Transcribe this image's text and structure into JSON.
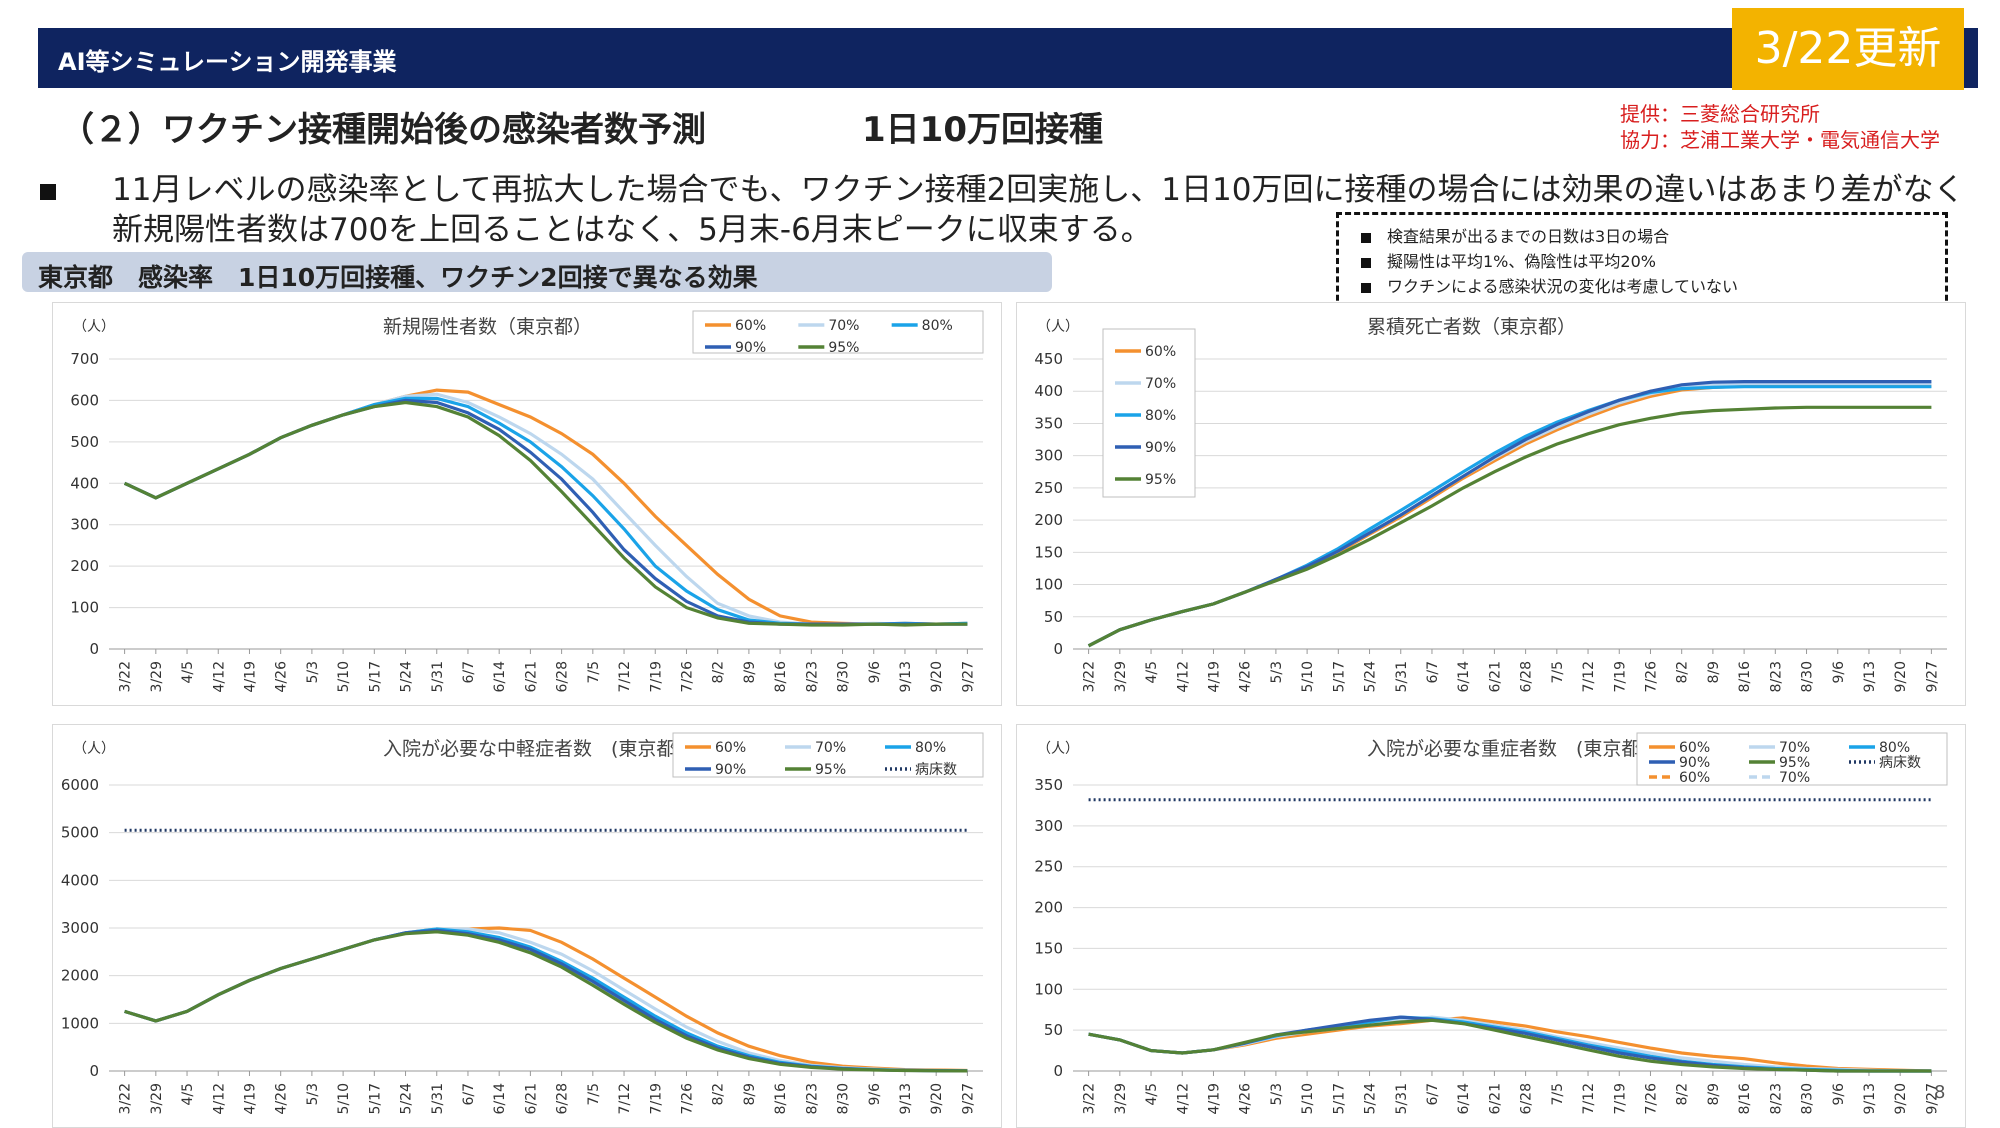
{
  "header": {
    "program": "AI等シミュレーション開発事業",
    "update_badge": "3/22更新",
    "title": "（２）ワクチン接種開始後の感染者数予測",
    "title_scenario": "1日10万回接種",
    "credit_provider": "提供：三菱総合研究所",
    "credit_collab": "協力：芝浦工業大学・電気通信大学",
    "brand_color": "#0f2460",
    "badge_color": "#f3b300",
    "credit_color": "#d81e1e"
  },
  "summary": "11月レベルの感染率として再拡大した場合でも、ワクチン接種2回実施し、1日10万回に接種の場合には効果の違いはあまり差がなく新規陽性者数は700を上回ることはなく、5月末-6月末ピークに収束する。",
  "subtitle": "東京都　感染率　1日10万回接種、ワクチン2回接で異なる効果",
  "notes": [
    "検査結果が出るまでの日数は3日の場合",
    "擬陽性は平均1%、偽陰性は平均20%",
    "ワクチンによる感染状況の変化は考慮していない"
  ],
  "page_number": "8",
  "series_colors": {
    "60%": "#f4902f",
    "70%": "#bdd7ee",
    "80%": "#1aa3e8",
    "90%": "#2f5fb3",
    "95%": "#548235",
    "病床数": "#203864"
  },
  "chart_data": [
    {
      "type": "line",
      "title": "新規陽性者数（東京都）",
      "ylabel": "（人）",
      "ylim": [
        0,
        700
      ],
      "yticks": [
        0,
        100,
        200,
        300,
        400,
        500,
        600,
        700
      ],
      "x": [
        "3/22",
        "3/29",
        "4/5",
        "4/12",
        "4/19",
        "4/26",
        "5/3",
        "5/10",
        "5/17",
        "5/24",
        "5/31",
        "6/7",
        "6/14",
        "6/21",
        "6/28",
        "7/5",
        "7/12",
        "7/19",
        "7/26",
        "8/2",
        "8/9",
        "8/16",
        "8/23",
        "8/30",
        "9/6",
        "9/13",
        "9/20",
        "9/27"
      ],
      "legend_position": "top-right",
      "series": [
        {
          "name": "60%",
          "values": [
            400,
            365,
            400,
            435,
            470,
            510,
            540,
            565,
            590,
            610,
            625,
            620,
            590,
            560,
            520,
            470,
            400,
            320,
            250,
            180,
            120,
            80,
            65,
            62,
            60,
            62,
            60,
            62
          ]
        },
        {
          "name": "70%",
          "values": [
            400,
            365,
            400,
            435,
            470,
            510,
            540,
            565,
            590,
            610,
            615,
            595,
            560,
            520,
            470,
            410,
            330,
            250,
            175,
            110,
            80,
            65,
            60,
            60,
            62,
            60,
            60,
            62
          ]
        },
        {
          "name": "80%",
          "values": [
            400,
            365,
            400,
            435,
            470,
            510,
            540,
            565,
            590,
            605,
            605,
            585,
            545,
            500,
            440,
            370,
            290,
            200,
            140,
            95,
            70,
            62,
            60,
            60,
            60,
            62,
            60,
            62
          ]
        },
        {
          "name": "90%",
          "values": [
            400,
            365,
            400,
            435,
            470,
            510,
            540,
            565,
            585,
            600,
            595,
            570,
            530,
            475,
            410,
            330,
            240,
            170,
            115,
            80,
            65,
            60,
            60,
            60,
            60,
            60,
            60,
            60
          ]
        },
        {
          "name": "95%",
          "values": [
            400,
            365,
            400,
            435,
            470,
            510,
            540,
            565,
            585,
            595,
            585,
            560,
            515,
            455,
            380,
            300,
            220,
            150,
            100,
            75,
            62,
            60,
            58,
            58,
            60,
            58,
            60,
            60
          ]
        }
      ]
    },
    {
      "type": "line",
      "title": "累積死亡者数（東京都）",
      "ylabel": "（人）",
      "ylim": [
        0,
        450
      ],
      "yticks": [
        0,
        50,
        100,
        150,
        200,
        250,
        300,
        350,
        400,
        450
      ],
      "x": [
        "3/22",
        "3/29",
        "4/5",
        "4/12",
        "4/19",
        "4/26",
        "5/3",
        "5/10",
        "5/17",
        "5/24",
        "5/31",
        "6/7",
        "6/14",
        "6/21",
        "6/28",
        "7/5",
        "7/12",
        "7/19",
        "7/26",
        "8/2",
        "8/9",
        "8/16",
        "8/23",
        "8/30",
        "9/6",
        "9/13",
        "9/20",
        "9/27"
      ],
      "legend_position": "top-left",
      "series": [
        {
          "name": "60%",
          "values": [
            5,
            30,
            45,
            58,
            70,
            88,
            108,
            128,
            150,
            178,
            205,
            235,
            265,
            292,
            318,
            340,
            360,
            378,
            392,
            402,
            406,
            408,
            408,
            408,
            408,
            408,
            408,
            408
          ]
        },
        {
          "name": "70%",
          "values": [
            5,
            30,
            45,
            58,
            70,
            88,
            108,
            128,
            152,
            180,
            208,
            238,
            268,
            296,
            322,
            344,
            364,
            382,
            396,
            406,
            410,
            412,
            412,
            412,
            412,
            412,
            412,
            412
          ]
        },
        {
          "name": "80%",
          "values": [
            5,
            30,
            45,
            58,
            70,
            88,
            108,
            130,
            156,
            186,
            215,
            245,
            275,
            304,
            330,
            352,
            370,
            386,
            398,
            404,
            406,
            407,
            407,
            407,
            407,
            407,
            407,
            407
          ]
        },
        {
          "name": "90%",
          "values": [
            5,
            30,
            45,
            58,
            70,
            88,
            108,
            128,
            152,
            180,
            208,
            238,
            268,
            298,
            325,
            348,
            368,
            386,
            400,
            410,
            414,
            415,
            415,
            415,
            415,
            415,
            415,
            415
          ]
        },
        {
          "name": "95%",
          "values": [
            5,
            30,
            45,
            58,
            70,
            88,
            106,
            124,
            146,
            170,
            196,
            222,
            250,
            275,
            298,
            318,
            334,
            348,
            358,
            366,
            370,
            372,
            374,
            375,
            375,
            375,
            375,
            375
          ]
        }
      ]
    },
    {
      "type": "line",
      "title": "入院が必要な中軽症者数　(東京都)",
      "ylabel": "（人）",
      "ylim": [
        0,
        6000
      ],
      "yticks": [
        0,
        1000,
        2000,
        3000,
        4000,
        5000,
        6000
      ],
      "x": [
        "3/22",
        "3/29",
        "4/5",
        "4/12",
        "4/19",
        "4/26",
        "5/3",
        "5/10",
        "5/17",
        "5/24",
        "5/31",
        "6/7",
        "6/14",
        "6/21",
        "6/28",
        "7/5",
        "7/12",
        "7/19",
        "7/26",
        "8/2",
        "8/9",
        "8/16",
        "8/23",
        "8/30",
        "9/6",
        "9/13",
        "9/20",
        "9/27"
      ],
      "legend_position": "top-right",
      "series": [
        {
          "name": "60%",
          "values": [
            1250,
            1050,
            1250,
            1600,
            1900,
            2150,
            2350,
            2550,
            2750,
            2900,
            2980,
            2980,
            3000,
            2950,
            2700,
            2350,
            1950,
            1550,
            1150,
            800,
            520,
            320,
            180,
            100,
            60,
            30,
            20,
            10
          ]
        },
        {
          "name": "70%",
          "values": [
            1250,
            1050,
            1250,
            1600,
            1900,
            2150,
            2350,
            2550,
            2750,
            2900,
            2980,
            2980,
            2900,
            2700,
            2450,
            2100,
            1700,
            1300,
            920,
            620,
            380,
            220,
            120,
            70,
            40,
            20,
            10,
            5
          ]
        },
        {
          "name": "80%",
          "values": [
            1250,
            1050,
            1250,
            1600,
            1900,
            2150,
            2350,
            2550,
            2750,
            2900,
            2980,
            2920,
            2800,
            2600,
            2300,
            1950,
            1550,
            1150,
            800,
            520,
            320,
            180,
            100,
            55,
            30,
            15,
            8,
            5
          ]
        },
        {
          "name": "90%",
          "values": [
            1250,
            1050,
            1250,
            1600,
            1900,
            2150,
            2350,
            2550,
            2750,
            2900,
            2950,
            2880,
            2750,
            2550,
            2250,
            1880,
            1480,
            1080,
            740,
            480,
            290,
            160,
            90,
            50,
            25,
            12,
            6,
            3
          ]
        },
        {
          "name": "95%",
          "values": [
            1250,
            1050,
            1250,
            1600,
            1900,
            2150,
            2350,
            2550,
            2750,
            2880,
            2920,
            2850,
            2700,
            2480,
            2180,
            1800,
            1400,
            1020,
            690,
            440,
            260,
            140,
            75,
            40,
            20,
            10,
            5,
            2
          ]
        },
        {
          "name": "病床数",
          "values": [
            5050,
            5050,
            5050,
            5050,
            5050,
            5050,
            5050,
            5050,
            5050,
            5050,
            5050,
            5050,
            5050,
            5050,
            5050,
            5050,
            5050,
            5050,
            5050,
            5050,
            5050,
            5050,
            5050,
            5050,
            5050,
            5050,
            5050,
            5050
          ]
        }
      ]
    },
    {
      "type": "line",
      "title": "入院が必要な重症者数　(東京都)",
      "ylabel": "（人）",
      "ylim": [
        0,
        350
      ],
      "yticks": [
        0,
        50,
        100,
        150,
        200,
        250,
        300,
        350
      ],
      "x": [
        "3/22",
        "3/29",
        "4/5",
        "4/12",
        "4/19",
        "4/26",
        "5/3",
        "5/10",
        "5/17",
        "5/24",
        "5/31",
        "6/7",
        "6/14",
        "6/21",
        "6/28",
        "7/5",
        "7/12",
        "7/19",
        "7/26",
        "8/2",
        "8/9",
        "8/16",
        "8/23",
        "8/30",
        "9/6",
        "9/13",
        "9/20",
        "9/27"
      ],
      "legend_position": "top-right",
      "series": [
        {
          "name": "60%",
          "values": [
            45,
            38,
            25,
            22,
            26,
            32,
            40,
            45,
            50,
            55,
            58,
            62,
            65,
            60,
            55,
            48,
            42,
            35,
            28,
            22,
            18,
            15,
            10,
            6,
            3,
            2,
            1,
            0
          ]
        },
        {
          "name": "70%",
          "values": [
            45,
            38,
            25,
            22,
            26,
            33,
            42,
            48,
            52,
            58,
            62,
            66,
            62,
            56,
            50,
            42,
            35,
            28,
            22,
            16,
            12,
            8,
            5,
            3,
            2,
            1,
            0,
            0
          ]
        },
        {
          "name": "80%",
          "values": [
            45,
            38,
            25,
            22,
            26,
            34,
            43,
            50,
            55,
            60,
            66,
            64,
            60,
            54,
            48,
            40,
            32,
            25,
            18,
            12,
            8,
            5,
            3,
            2,
            1,
            0,
            0,
            0
          ]
        },
        {
          "name": "90%",
          "values": [
            45,
            38,
            25,
            22,
            26,
            34,
            44,
            50,
            56,
            62,
            66,
            63,
            58,
            52,
            46,
            38,
            30,
            22,
            16,
            11,
            7,
            4,
            2,
            1,
            0,
            0,
            0,
            0
          ]
        },
        {
          "name": "95%",
          "values": [
            45,
            38,
            25,
            22,
            26,
            35,
            44,
            48,
            52,
            56,
            60,
            62,
            58,
            50,
            42,
            34,
            26,
            18,
            12,
            8,
            5,
            3,
            2,
            1,
            0,
            0,
            0,
            0
          ]
        },
        {
          "name": "病床数",
          "values": [
            332,
            332,
            332,
            332,
            332,
            332,
            332,
            332,
            332,
            332,
            332,
            332,
            332,
            332,
            332,
            332,
            332,
            332,
            332,
            332,
            332,
            332,
            332,
            332,
            332,
            332,
            332,
            332
          ]
        }
      ],
      "legend_extra": [
        "60%",
        "70%"
      ]
    }
  ]
}
